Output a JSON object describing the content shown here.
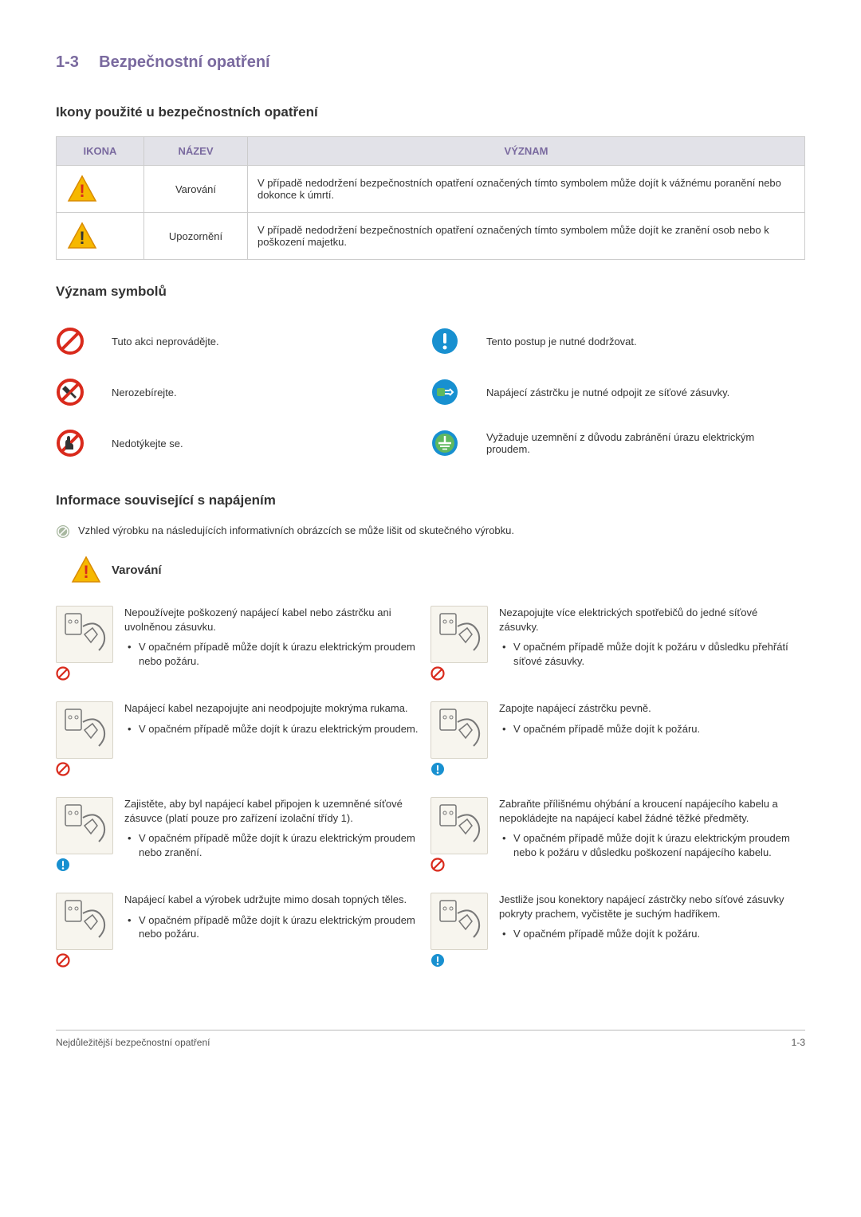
{
  "header": {
    "section_number": "1-3",
    "section_title": "Bezpečnostní opatření"
  },
  "icons_section": {
    "heading": "Ikony použité u bezpečnostních opatření",
    "table": {
      "columns": [
        "IKONA",
        "NÁZEV",
        "VÝZNAM"
      ],
      "rows": [
        {
          "icon": "warning-triangle-red",
          "name": "Varování",
          "meaning": "V případě nedodržení bezpečnostních opatření označených tímto symbolem může dojít k vážnému poranění nebo dokonce k úmrtí."
        },
        {
          "icon": "warning-triangle-yellow",
          "name": "Upozornění",
          "meaning": "V případě nedodržení bezpečnostních opatření označených tímto symbolem může dojít ke zranění osob nebo k poškození majetku."
        }
      ],
      "header_bg": "#e2e2e8",
      "header_color": "#7a6a9f",
      "border_color": "#cccccc"
    }
  },
  "symbols_section": {
    "heading": "Význam symbolů",
    "items": [
      {
        "icon": "prohibit",
        "text": "Tuto akci neprovádějte."
      },
      {
        "icon": "must-do",
        "text": "Tento postup je nutné dodržovat."
      },
      {
        "icon": "no-disassemble",
        "text": "Nerozebírejte."
      },
      {
        "icon": "unplug",
        "text": "Napájecí zástrčku je nutné odpojit ze síťové zásuvky."
      },
      {
        "icon": "no-touch",
        "text": "Nedotýkejte se."
      },
      {
        "icon": "ground",
        "text": "Vyžaduje uzemnění z důvodu zabránění úrazu elektrickým proudem."
      }
    ]
  },
  "power_section": {
    "heading": "Informace související s napájením",
    "note": "Vzhled výrobku na následujících informativních obrázcích se může lišit od skutečného výrobku.",
    "warning_label": "Varování",
    "warnings": [
      {
        "badge": "prohibit",
        "text": "Nepoužívejte poškozený napájecí kabel nebo zástrčku ani uvolněnou zásuvku.",
        "bullets": [
          "V opačném případě může dojít k úrazu elektrickým proudem nebo požáru."
        ]
      },
      {
        "badge": "prohibit",
        "text": "Nezapojujte více elektrických spotřebičů do jedné síťové zásuvky.",
        "bullets": [
          "V opačném případě může dojít k požáru v důsledku přehřátí síťové zásuvky."
        ]
      },
      {
        "badge": "prohibit",
        "text": "Napájecí kabel nezapojujte ani neodpojujte mokrýma rukama.",
        "bullets": [
          "V opačném případě může dojít k úrazu elektrickým proudem."
        ]
      },
      {
        "badge": "must-do",
        "text": "Zapojte napájecí zástrčku pevně.",
        "bullets": [
          "V opačném případě může dojít k požáru."
        ]
      },
      {
        "badge": "must-do",
        "text": "Zajistěte, aby byl napájecí kabel připojen k uzemněné síťové zásuvce (platí pouze pro zařízení izolační třídy 1).",
        "bullets": [
          "V opačném případě může dojít k úrazu elektrickým proudem nebo zranění."
        ]
      },
      {
        "badge": "prohibit",
        "text": "Zabraňte přílišnému ohýbání a kroucení napájecího kabelu a nepokládejte na napájecí kabel žádné těžké předměty.",
        "bullets": [
          "V opačném případě může dojít k úrazu elektrickým proudem nebo k požáru v důsledku poškození napájecího kabelu."
        ]
      },
      {
        "badge": "prohibit",
        "text": "Napájecí kabel a výrobek udržujte mimo dosah topných těles.",
        "bullets": [
          "V opačném případě může dojít k úrazu elektrickým proudem nebo požáru."
        ]
      },
      {
        "badge": "must-do",
        "text": "Jestliže jsou konektory napájecí zástrčky nebo síťové zásuvky pokryty prachem, vyčistěte je suchým hadříkem.",
        "bullets": [
          "V opačném případě může dojít k požáru."
        ]
      }
    ]
  },
  "footer": {
    "left": "Nejdůležitější bezpečnostní opatření",
    "right": "1-3"
  },
  "colors": {
    "accent": "#7a6a9f",
    "red": "#d92a1c",
    "yellow": "#f6b800",
    "blue": "#1890d0",
    "green": "#5fb85f",
    "prohibit": "#d92a1c",
    "illus_bg": "#f7f5ee"
  }
}
